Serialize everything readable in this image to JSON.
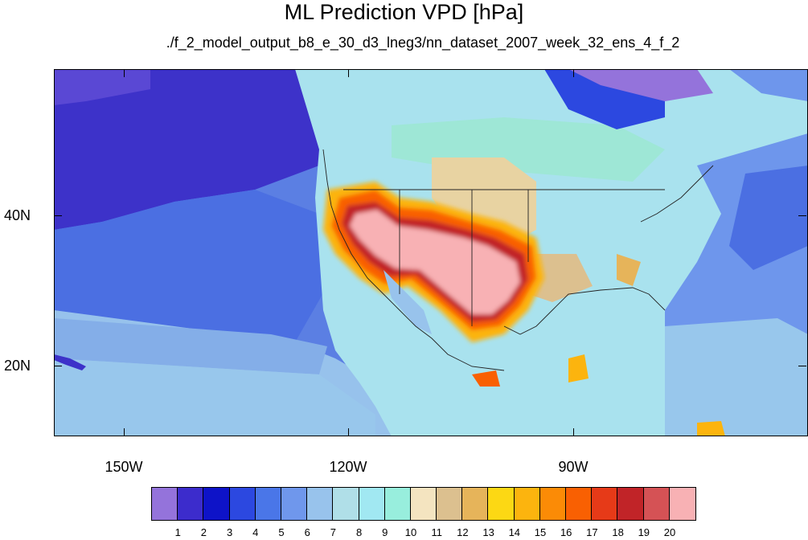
{
  "title": "ML Prediction VPD [hPa]",
  "subtitle": "./f_2_model_output_b8_e_30_d3_lneg3/nn_dataset_2007_week_32_ens_4_f_2",
  "map": {
    "variable": "VPD",
    "units": "hPa",
    "projection": "cylindrical equidistant",
    "region": "North America and eastern Pacific",
    "lat_range": [
      10,
      59
    ],
    "lon_range": [
      -159,
      -59
    ],
    "lat_ticks": [
      {
        "value": 40,
        "label": "40N"
      },
      {
        "value": 20,
        "label": "20N"
      }
    ],
    "lon_ticks": [
      {
        "value": -150,
        "label": "150W"
      },
      {
        "value": -120,
        "label": "120W"
      },
      {
        "value": -90,
        "label": "90W"
      }
    ]
  },
  "colorbar": {
    "labels": [
      "1",
      "2",
      "3",
      "4",
      "5",
      "6",
      "7",
      "8",
      "9",
      "10",
      "11",
      "12",
      "13",
      "14",
      "15",
      "16",
      "17",
      "18",
      "19",
      "20"
    ],
    "colors": [
      "#9473db",
      "#3c2ccc",
      "#0e13c8",
      "#2c48e0",
      "#4a76e8",
      "#6f97ec",
      "#98c3ec",
      "#b0dfe8",
      "#a1e8f2",
      "#98eedd",
      "#f4e4c0",
      "#dcc08f",
      "#e6b45a",
      "#fcd814",
      "#fcb40e",
      "#fb8b06",
      "#f96002",
      "#e63a18",
      "#c12428",
      "#d55255",
      "#f8b1b4"
    ]
  }
}
